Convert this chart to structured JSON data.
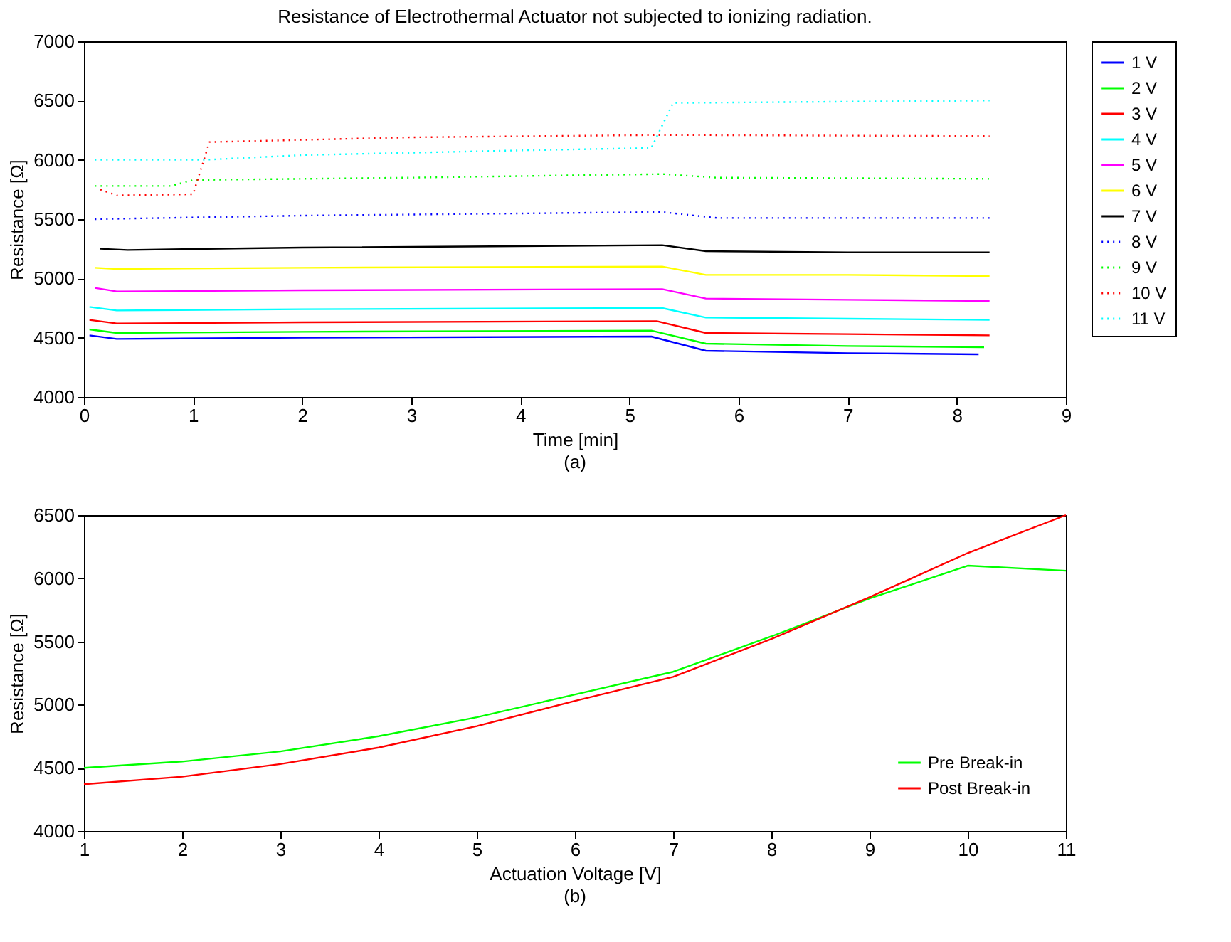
{
  "chart_data": [
    {
      "type": "line",
      "title": "Resistance of Electrothermal Actuator not subjected to ionizing radiation.",
      "xlabel": "Time [min]",
      "ylabel": "Resistance [Ω]",
      "annotations": [
        "(a)"
      ],
      "xlim": [
        0,
        9
      ],
      "ylim": [
        4000,
        7000
      ],
      "xticks": [
        0,
        1,
        2,
        3,
        4,
        5,
        6,
        7,
        8,
        9
      ],
      "yticks": [
        4000,
        4500,
        5000,
        5500,
        6000,
        6500,
        7000
      ],
      "legend": "right",
      "series": [
        {
          "name": "1 V",
          "color": "#0000ff",
          "line_style": "solid",
          "x": [
            0.05,
            0.3,
            2,
            5.2,
            5.7,
            7,
            8.2
          ],
          "values": [
            4520,
            4490,
            4500,
            4510,
            4390,
            4370,
            4360
          ]
        },
        {
          "name": "2 V",
          "color": "#00ff00",
          "line_style": "solid",
          "x": [
            0.05,
            0.3,
            2,
            5.2,
            5.7,
            7,
            8.25
          ],
          "values": [
            4570,
            4540,
            4550,
            4560,
            4450,
            4430,
            4420
          ]
        },
        {
          "name": "3 V",
          "color": "#ff0000",
          "line_style": "solid",
          "x": [
            0.05,
            0.3,
            2,
            5.25,
            5.7,
            7,
            8.3
          ],
          "values": [
            4650,
            4620,
            4630,
            4640,
            4540,
            4530,
            4520
          ]
        },
        {
          "name": "4 V",
          "color": "#00ffff",
          "line_style": "solid",
          "x": [
            0.05,
            0.3,
            2,
            5.3,
            5.7,
            7,
            8.3
          ],
          "values": [
            4760,
            4730,
            4740,
            4750,
            4670,
            4660,
            4650
          ]
        },
        {
          "name": "5 V",
          "color": "#ff00ff",
          "line_style": "solid",
          "x": [
            0.1,
            0.3,
            2,
            5.3,
            5.7,
            7,
            8.3
          ],
          "values": [
            4920,
            4890,
            4900,
            4910,
            4830,
            4820,
            4810
          ]
        },
        {
          "name": "6 V",
          "color": "#ffff00",
          "line_style": "solid",
          "x": [
            0.1,
            0.3,
            2,
            5.3,
            5.7,
            7,
            8.3
          ],
          "values": [
            5090,
            5080,
            5090,
            5100,
            5030,
            5030,
            5020
          ]
        },
        {
          "name": "7 V",
          "color": "#000000",
          "line_style": "solid",
          "x": [
            0.15,
            0.4,
            2,
            5.3,
            5.7,
            7,
            8.3
          ],
          "values": [
            5250,
            5240,
            5260,
            5280,
            5230,
            5220,
            5220
          ]
        },
        {
          "name": "8 V",
          "color": "#0000ff",
          "line_style": "dotted",
          "x": [
            0.1,
            2,
            5.3,
            5.8,
            8.3
          ],
          "values": [
            5500,
            5530,
            5560,
            5510,
            5510
          ]
        },
        {
          "name": "9 V",
          "color": "#00ff00",
          "line_style": "dotted",
          "x": [
            0.1,
            0.8,
            1.0,
            3,
            5.3,
            5.8,
            8.3
          ],
          "values": [
            5780,
            5780,
            5830,
            5850,
            5880,
            5850,
            5840
          ]
        },
        {
          "name": "10 V",
          "color": "#ff0000",
          "line_style": "dotted",
          "x": [
            0.15,
            0.3,
            1.0,
            1.15,
            3,
            5.3,
            8.3
          ],
          "values": [
            5750,
            5700,
            5710,
            6150,
            6190,
            6210,
            6200
          ]
        },
        {
          "name": "11 V",
          "color": "#00ffff",
          "line_style": "dotted",
          "x": [
            0.1,
            1.1,
            2,
            4,
            5.2,
            5.4,
            8.3
          ],
          "values": [
            6000,
            6000,
            6040,
            6080,
            6100,
            6480,
            6500
          ]
        }
      ]
    },
    {
      "type": "line",
      "xlabel": "Actuation Voltage [V]",
      "ylabel": "Resistance [Ω]",
      "annotations": [
        "(b)"
      ],
      "xlim": [
        1,
        11
      ],
      "ylim": [
        4000,
        6500
      ],
      "xticks": [
        1,
        2,
        3,
        4,
        5,
        6,
        7,
        8,
        9,
        10,
        11
      ],
      "yticks": [
        4000,
        4500,
        5000,
        5500,
        6000,
        6500
      ],
      "legend": "bottom right",
      "x": [
        1,
        2,
        3,
        4,
        5,
        6,
        7,
        8,
        9,
        10,
        11
      ],
      "series": [
        {
          "name": "Pre Break-in",
          "color": "#00ff00",
          "values": [
            4500,
            4550,
            4630,
            4750,
            4900,
            5080,
            5260,
            5540,
            5840,
            6100,
            6060
          ]
        },
        {
          "name": "Post Break-in",
          "color": "#ff0000",
          "values": [
            4370,
            4430,
            4530,
            4660,
            4830,
            5030,
            5220,
            5520,
            5850,
            6200,
            6500
          ]
        }
      ]
    }
  ]
}
